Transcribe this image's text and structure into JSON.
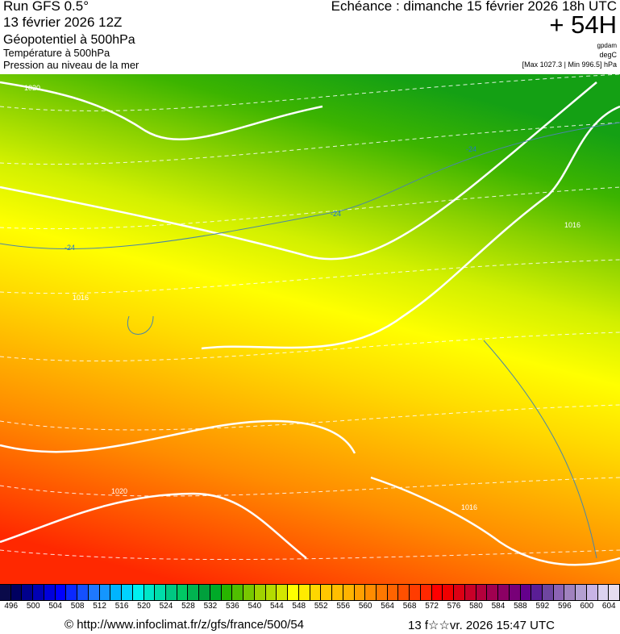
{
  "header": {
    "run": "Run GFS 0.5°",
    "run_date": "13 février 2026 12Z",
    "field1": "Géopotentiel à 500hPa",
    "field2": "Température à 500hPa",
    "field3": "Pression au niveau de la mer",
    "echeance": "Echéance : dimanche 15 février 2026 18h UTC",
    "lead": "+ 54H",
    "unit1": "gpdam",
    "unit2": "degC",
    "minmax": "[Max 1027.3 | Min 996.5] hPa"
  },
  "map": {
    "isobar_labels": [
      "1020",
      "1016",
      "1016",
      "1020",
      "1016"
    ],
    "temp_labels": [
      "-24",
      "-24",
      "-24"
    ],
    "gradient_colors": [
      "#14a014",
      "#3cb400",
      "#8cd200",
      "#d2f000",
      "#ffff00",
      "#ffdc00",
      "#ffb400",
      "#ff8c00",
      "#ff5a00",
      "#ff2800"
    ]
  },
  "scale": {
    "labels": [
      "496",
      "500",
      "504",
      "508",
      "512",
      "516",
      "520",
      "524",
      "528",
      "532",
      "536",
      "540",
      "544",
      "548",
      "552",
      "556",
      "560",
      "564",
      "568",
      "572",
      "576",
      "580",
      "584",
      "588",
      "592",
      "596",
      "600",
      "604"
    ],
    "colors": [
      "#0a0a4a",
      "#000060",
      "#00008c",
      "#0000b4",
      "#0000dc",
      "#0000ff",
      "#0a28ff",
      "#1450ff",
      "#1e78ff",
      "#1496ff",
      "#00b4ff",
      "#00d2ff",
      "#00f0f0",
      "#00e6c8",
      "#00dcaa",
      "#00c882",
      "#00c864",
      "#00b450",
      "#00a03c",
      "#00aa28",
      "#28b400",
      "#50be00",
      "#78c800",
      "#a0d200",
      "#b4dc00",
      "#d2e600",
      "#ffff00",
      "#ffeb00",
      "#ffd700",
      "#ffc800",
      "#ffbe00",
      "#ffb400",
      "#ffa000",
      "#ff8c00",
      "#ff7800",
      "#ff6400",
      "#ff5000",
      "#ff3c00",
      "#ff2800",
      "#ff0000",
      "#f00000",
      "#dc0014",
      "#c80028",
      "#b4003c",
      "#a00050",
      "#8c0064",
      "#780078",
      "#64008c",
      "#5a1e96",
      "#6e46a0",
      "#8c64b4",
      "#a082be",
      "#b4a0d2",
      "#c8b4e6",
      "#dcd2f0",
      "#e6dcf0"
    ]
  },
  "footer": {
    "url": "© http://www.infoclimat.fr/z/gfs/france/500/54",
    "timestamp": "13 f☆☆vr. 2026 15:47 UTC"
  }
}
